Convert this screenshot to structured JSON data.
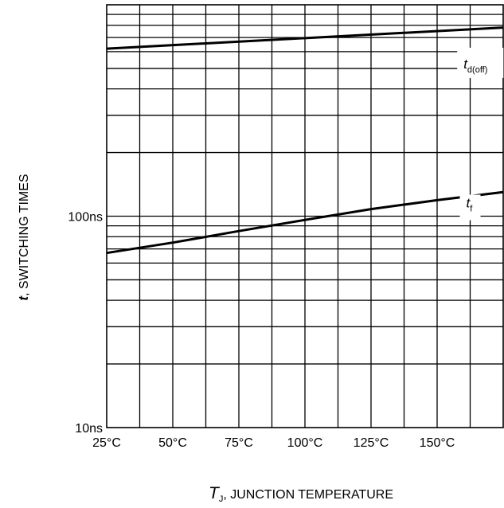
{
  "chart_data": {
    "type": "line",
    "x_ticks": [
      "25°C",
      "50°C",
      "75°C",
      "100°C",
      "125°C",
      "150°C"
    ],
    "x_tick_values": [
      25,
      50,
      75,
      100,
      125,
      150
    ],
    "xlim": [
      25,
      175
    ],
    "y_ticks": [
      "10ns",
      "100ns"
    ],
    "y_tick_values": [
      10,
      100
    ],
    "ylim": [
      10,
      1000
    ],
    "y_scale": "log",
    "grid": true,
    "xlabel": {
      "symbol": "T",
      "subscript": "J",
      "text": ", JUNCTION TEMPERATURE"
    },
    "ylabel": {
      "symbol": "t",
      "text": ", SWITCHING TIMES"
    },
    "series": [
      {
        "symbol": "t",
        "subscript": "d(off)",
        "x": [
          25,
          175
        ],
        "y": [
          620,
          780
        ]
      },
      {
        "symbol": "t",
        "subscript": "f",
        "x": [
          25,
          50,
          75,
          100,
          125,
          150,
          175
        ],
        "y": [
          67,
          75,
          85,
          96,
          108,
          119,
          130
        ]
      }
    ]
  }
}
